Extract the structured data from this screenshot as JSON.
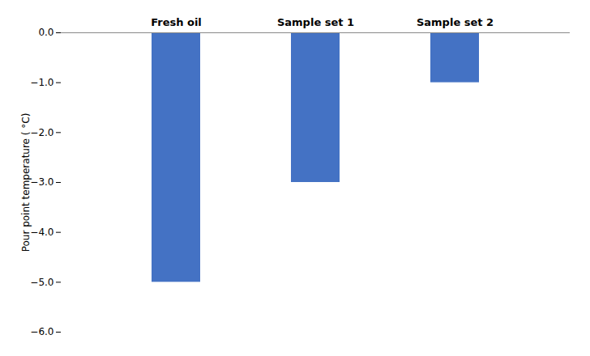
{
  "chart_data": {
    "type": "bar",
    "categories": [
      "Fresh oil",
      "Sample set 1",
      "Sample set 2"
    ],
    "values": [
      -5.0,
      -3.0,
      -1.0
    ],
    "color": "#4472C4",
    "ylabel": "Pour point temperature ( °C)",
    "ylim": [
      -6,
      0
    ],
    "yticks": [
      0,
      -1,
      -2,
      -3,
      -4,
      -5,
      -6
    ],
    "grid": false
  }
}
